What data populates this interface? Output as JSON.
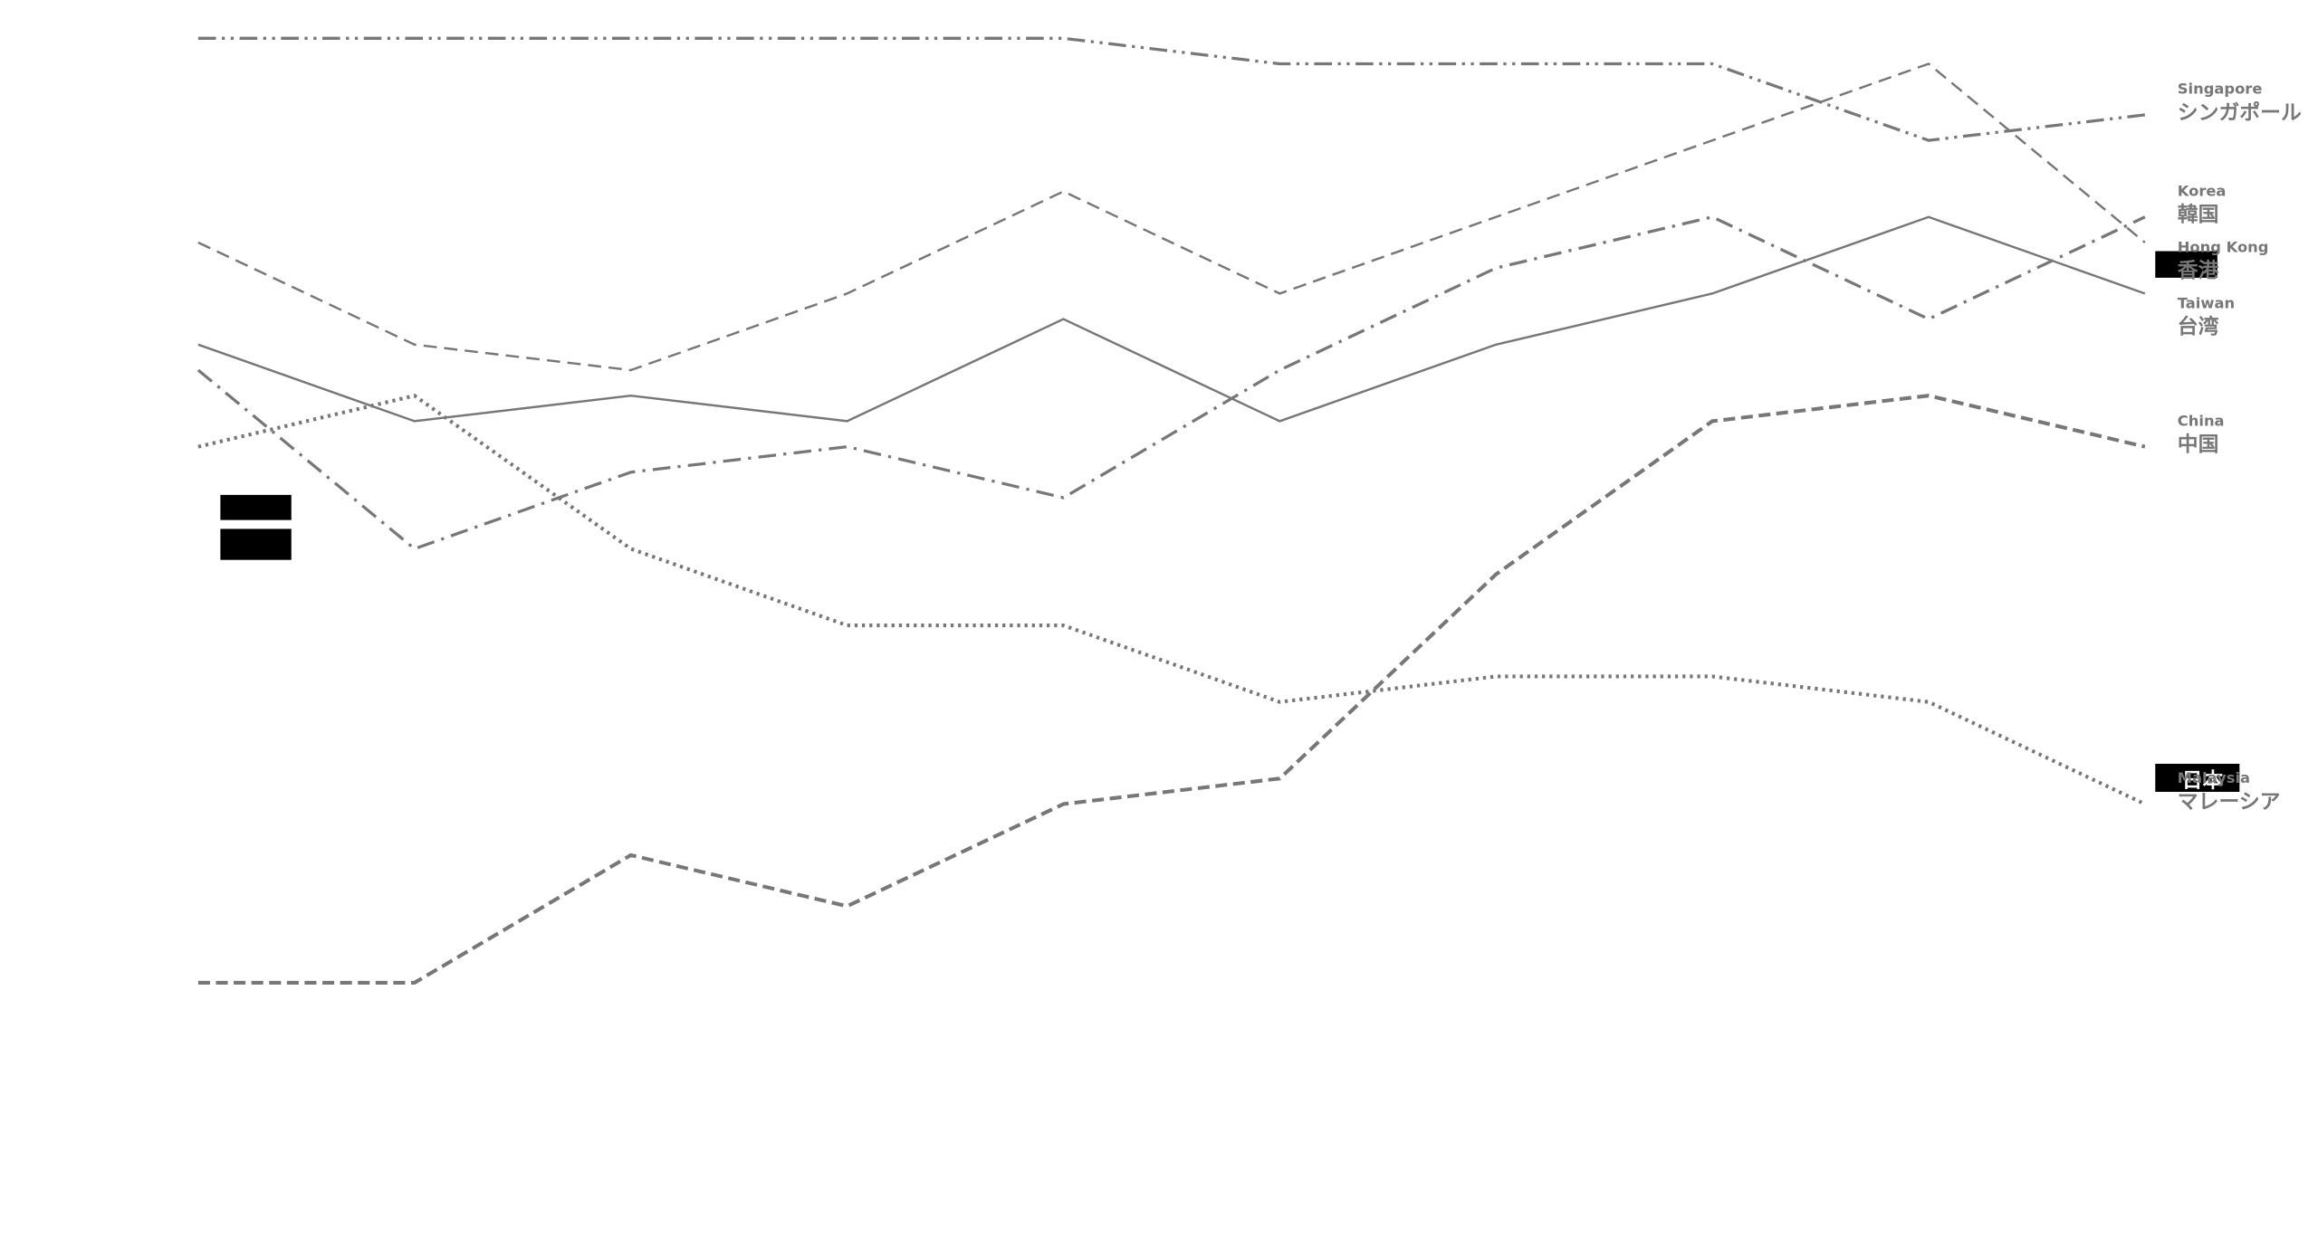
{
  "chart_data": {
    "type": "line",
    "categories": [
      null,
      null,
      null,
      null,
      null,
      null,
      null,
      null,
      null,
      null
    ],
    "ylim": [
      -10,
      38.5
    ],
    "series": [
      {
        "name": "Singapore",
        "name_ja": "シンガポール",
        "color": "#777777",
        "style": "dashdotdot",
        "values": [
          37,
          37,
          37,
          37,
          37,
          36,
          36,
          36,
          33,
          34
        ]
      },
      {
        "name": "Korea",
        "name_ja": "韓国",
        "color": "#777777",
        "style": "dashdot",
        "values": [
          24,
          17,
          20,
          21,
          19,
          24,
          28,
          30,
          26,
          30
        ]
      },
      {
        "name": "Hong Kong",
        "name_ja": "香港",
        "color": "#777777",
        "style": "dashed-thin",
        "values": [
          29,
          25,
          24,
          27,
          31,
          27,
          30,
          33,
          36,
          29
        ]
      },
      {
        "name": "Taiwan",
        "name_ja": "台湾",
        "color": "#777777",
        "style": "solid",
        "values": [
          25,
          22,
          23,
          22,
          26,
          22,
          25,
          27,
          30,
          27
        ]
      },
      {
        "name": "China",
        "name_ja": "中国",
        "color": "#777777",
        "style": "dashed",
        "values": [
          0,
          0,
          5,
          3,
          7,
          8,
          16,
          22,
          23,
          21
        ]
      },
      {
        "name": "Malaysia",
        "name_ja": "マレーシア",
        "color": "#777777",
        "style": "dotted",
        "values": [
          21,
          23,
          17,
          14,
          14,
          11,
          12,
          12,
          11,
          7
        ]
      }
    ],
    "hidden_label": "日本"
  }
}
